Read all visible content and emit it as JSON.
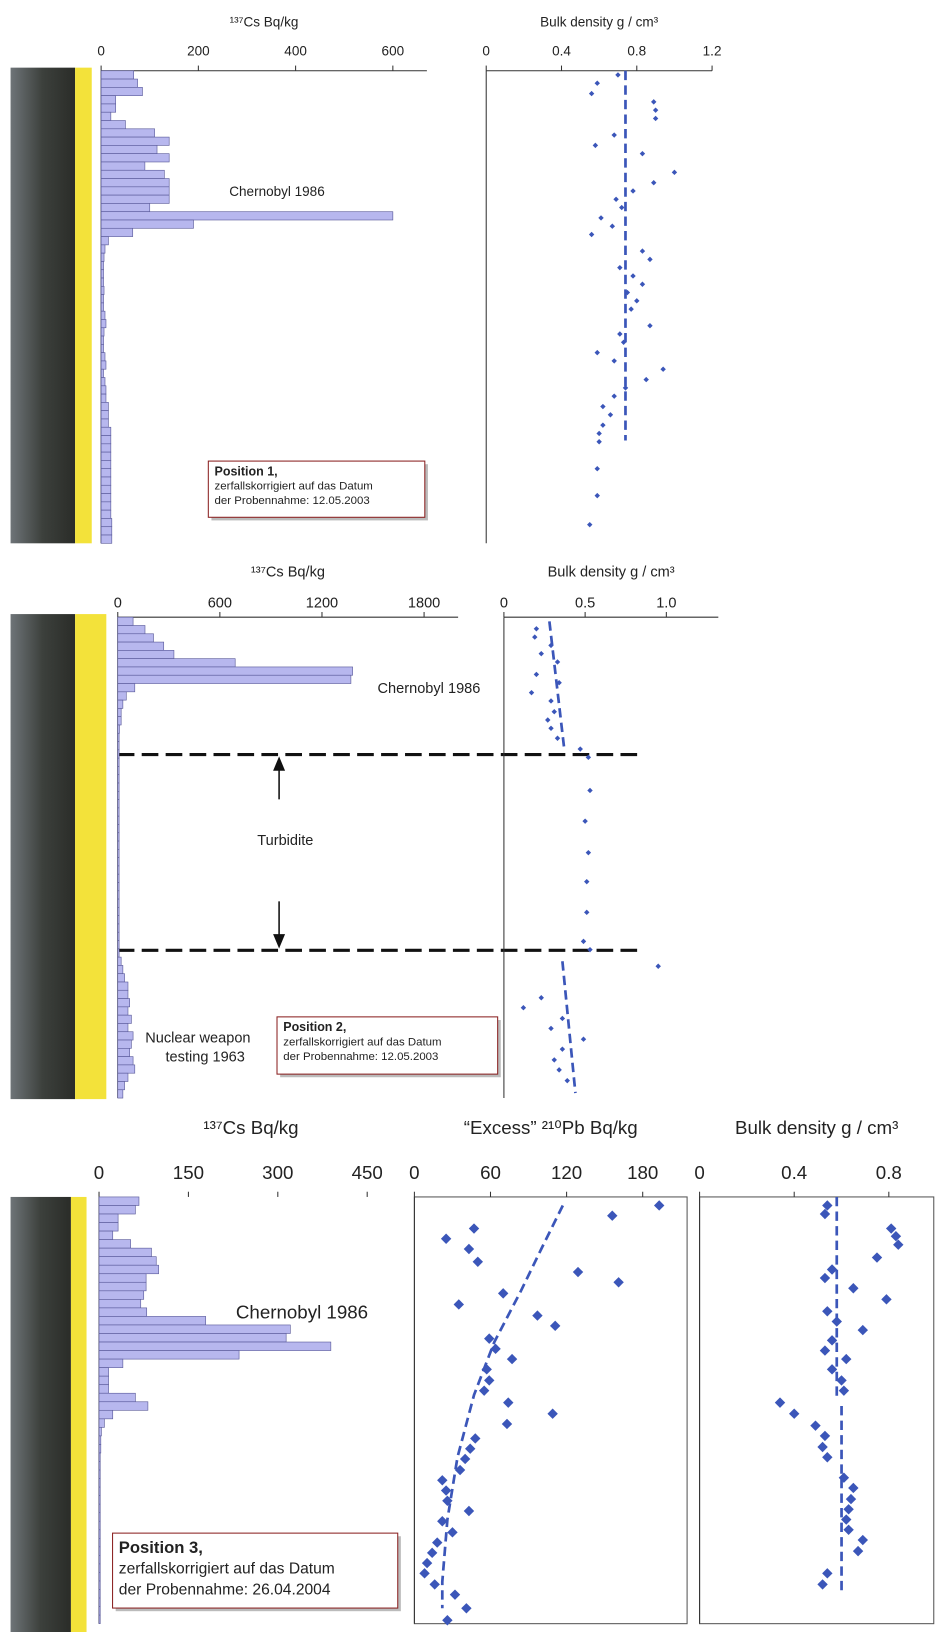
{
  "chart_data": [
    {
      "type": "bar",
      "orientation": "horizontal",
      "x_label": "¹³⁷Cs Bq/kg",
      "xlim": [
        0,
        670
      ],
      "xticks": [
        0,
        200,
        400,
        600
      ],
      "color": "#b7b7ee",
      "values": [
        67,
        75,
        85,
        30,
        30,
        20,
        50,
        110,
        140,
        115,
        140,
        90,
        130,
        140,
        140,
        140,
        100,
        600,
        190,
        65,
        15,
        8,
        6,
        5,
        5,
        5,
        6,
        5,
        5,
        8,
        10,
        6,
        5,
        5,
        8,
        10,
        5,
        8,
        10,
        10,
        15,
        15,
        15,
        20,
        20,
        20,
        20,
        20,
        20,
        20,
        20,
        20,
        20,
        20,
        22,
        22,
        22
      ],
      "annotations": [
        "Chernobyl 1986"
      ],
      "note": {
        "title": "Position 1,",
        "lines": [
          "zerfallskorrigiert auf das Datum",
          "der Probennahme: 12.05.2003"
        ]
      }
    },
    {
      "type": "scatter",
      "x_label": "Bulk density g / cm³",
      "xlim": [
        0,
        1.2
      ],
      "xticks": [
        0,
        0.4,
        0.8,
        1.2
      ],
      "ylim": [
        0,
        57
      ],
      "y_inverted": true,
      "color": "#3b56b9",
      "points": {
        "x": [
          0.7,
          0.59,
          0.56,
          0.89,
          0.9,
          0.9,
          0.68,
          0.58,
          0.83,
          1.0,
          0.89,
          0.78,
          0.69,
          0.72,
          0.61,
          0.67,
          0.56,
          0.83,
          0.87,
          0.71,
          0.78,
          0.83,
          0.75,
          0.8,
          0.77,
          0.87,
          0.71,
          0.73,
          0.59,
          0.68,
          0.94,
          0.85,
          0.74,
          0.68,
          0.62,
          0.66,
          0.62,
          0.6,
          0.6,
          0.59,
          0.59,
          0.55
        ],
        "y": [
          0.5,
          1.5,
          2.75,
          3.75,
          4.75,
          5.75,
          7.75,
          9,
          10,
          12.25,
          13.5,
          14.5,
          15.5,
          16.5,
          17.75,
          18.75,
          19.75,
          21.75,
          22.75,
          23.75,
          24.75,
          25.75,
          26.75,
          27.75,
          28.75,
          30.75,
          31.75,
          32.75,
          34,
          35,
          36,
          37.25,
          38.25,
          39.25,
          40.5,
          41.5,
          42.75,
          43.75,
          44.75,
          48,
          51.25,
          54.75
        ]
      },
      "trend": {
        "x": [
          0.74,
          0.74
        ],
        "y": [
          0,
          44.6
        ]
      }
    },
    {
      "type": "bar",
      "orientation": "horizontal",
      "x_label": "¹³⁷Cs Bq/kg",
      "xlim": [
        0,
        2000
      ],
      "xticks": [
        0,
        600,
        1200,
        1800
      ],
      "color": "#b7b7ee",
      "values": [
        90,
        160,
        210,
        270,
        330,
        690,
        1380,
        1370,
        100,
        50,
        30,
        20,
        20,
        10,
        8,
        8,
        8,
        8,
        8,
        8,
        8,
        8,
        8,
        8,
        8,
        8,
        8,
        8,
        8,
        8,
        8,
        8,
        8,
        8,
        8,
        8,
        8,
        8,
        8,
        8,
        8,
        20,
        30,
        40,
        60,
        60,
        70,
        60,
        80,
        60,
        90,
        80,
        70,
        90,
        100,
        60,
        40,
        30
      ],
      "annotations": [
        "Chernobyl 1986",
        "Turbidite",
        "Nuclear weapon",
        "testing 1963"
      ],
      "note": {
        "title": "Position 2,",
        "lines": [
          "zerfallskorrigiert auf das Datum",
          "der Probennahme: 12.05.2003"
        ]
      }
    },
    {
      "type": "scatter",
      "x_label": "Bulk density g / cm³",
      "xlim": [
        0,
        1.32
      ],
      "xticks": [
        0,
        0.5,
        {
          "value": 1,
          "label": "1.0"
        }
      ],
      "ylim": [
        0,
        58
      ],
      "y_inverted": true,
      "color": "#3b56b9",
      "points": {
        "x": [
          0.2,
          0.19,
          0.29,
          0.23,
          0.33,
          0.2,
          0.34,
          0.17,
          0.29,
          0.31,
          0.27,
          0.29,
          0.33,
          0.47,
          0.52,
          0.53,
          0.5,
          0.52,
          0.51,
          0.51,
          0.49,
          0.53,
          0.95,
          0.23,
          0.12,
          0.36,
          0.29,
          0.49,
          0.36,
          0.31,
          0.34,
          0.39
        ],
        "y": [
          1.4,
          2.4,
          3.4,
          4.4,
          5.4,
          6.9,
          7.9,
          9.1,
          10.1,
          11.4,
          12.4,
          13.4,
          14.6,
          15.9,
          16.9,
          20.9,
          24.6,
          28.4,
          31.9,
          35.6,
          39.1,
          40.1,
          42.1,
          45.9,
          47.1,
          48.4,
          49.6,
          50.9,
          52.1,
          53.4,
          54.6,
          55.9
        ]
      },
      "trend": {
        "x": [
          0.28,
          0.37,
          null,
          0.36,
          0.44
        ],
        "y": [
          0.5,
          15.6,
          null,
          41.5,
          57.4
        ]
      }
    },
    {
      "type": "bar",
      "orientation": "horizontal",
      "x_label": "¹³⁷Cs Bq/kg",
      "xlim": [
        0,
        510
      ],
      "xticks": [
        0,
        150,
        300,
        450
      ],
      "color": "#b7b7ee",
      "values": [
        67,
        61,
        32,
        32,
        23,
        53,
        88,
        96,
        100,
        79,
        79,
        75,
        70,
        80,
        179,
        321,
        314,
        389,
        235,
        40,
        16,
        16,
        16,
        61,
        82,
        23,
        9,
        4,
        3,
        3,
        2,
        2,
        2,
        2,
        2,
        2,
        2,
        2,
        2,
        2,
        2,
        2,
        2,
        2,
        2,
        2,
        2,
        2,
        2,
        2
      ],
      "annotations": [
        "Chernobyl 1986"
      ],
      "note": {
        "title": "Position 3,",
        "lines": [
          "zerfallskorrigiert auf das Datum",
          "der Probennahme: 26.04.2004"
        ]
      }
    },
    {
      "type": "scatter",
      "x_label": "“Excess” ²¹⁰Pb Bq/kg",
      "xlim": [
        0,
        215
      ],
      "xticks": [
        0,
        60,
        120,
        180
      ],
      "ylim": [
        0,
        50
      ],
      "y_inverted": true,
      "color": "#3b56b9",
      "points": {
        "x": [
          193,
          156,
          47,
          25,
          43,
          50,
          129,
          161,
          70,
          35,
          97,
          111,
          59,
          64,
          77,
          57,
          59,
          55,
          74,
          109,
          73,
          48,
          44,
          40,
          36,
          22,
          25,
          26,
          43,
          22,
          30,
          18,
          14,
          10,
          8,
          16,
          32,
          41,
          26
        ],
        "y": [
          1,
          2.2,
          3.7,
          4.9,
          6.1,
          7.6,
          8.8,
          10,
          11.3,
          12.6,
          13.9,
          15.1,
          16.6,
          17.8,
          19,
          20.2,
          21.5,
          22.7,
          24.1,
          25.4,
          26.6,
          28.3,
          29.5,
          30.7,
          32,
          33.2,
          34.4,
          35.6,
          36.8,
          38,
          39.3,
          40.5,
          41.7,
          42.9,
          44.1,
          45.4,
          46.6,
          48.2,
          49.6
        ]
      },
      "trend": {
        "x": [
          117,
          100,
          84,
          63,
          47,
          34,
          26,
          22,
          22
        ],
        "y": [
          1,
          6.1,
          11,
          17,
          23.2,
          30.5,
          37.8,
          45.1,
          48.2
        ]
      }
    },
    {
      "type": "scatter",
      "x_label": "Bulk density g / cm³",
      "xlim": [
        0,
        0.99
      ],
      "xticks": [
        0,
        0.4,
        0.8
      ],
      "ylim": [
        0,
        50
      ],
      "y_inverted": true,
      "color": "#3b56b9",
      "points": {
        "x": [
          0.54,
          0.53,
          0.81,
          0.83,
          0.84,
          0.75,
          0.56,
          0.53,
          0.65,
          0.79,
          0.54,
          0.58,
          0.69,
          0.56,
          0.53,
          0.62,
          0.56,
          0.6,
          0.61,
          0.34,
          0.4,
          0.49,
          0.53,
          0.52,
          0.54,
          0.61,
          0.65,
          0.64,
          0.63,
          0.62,
          0.63,
          0.69,
          0.67,
          0.54,
          0.52
        ],
        "y": [
          1,
          2,
          3.7,
          4.6,
          5.6,
          7.1,
          8.5,
          9.5,
          10.7,
          12,
          13.4,
          14.6,
          15.6,
          16.8,
          18,
          19,
          20.2,
          21.5,
          22.7,
          24.1,
          25.4,
          26.8,
          28,
          29.3,
          30.5,
          32.9,
          34.1,
          35.4,
          36.6,
          37.8,
          39,
          40.2,
          41.5,
          44.1,
          45.4
        ]
      },
      "trend": {
        "x": [
          0.58,
          0.58,
          null,
          0.6,
          0.6
        ],
        "y": [
          0,
          23.4,
          null,
          24.5,
          46.3
        ]
      }
    }
  ]
}
